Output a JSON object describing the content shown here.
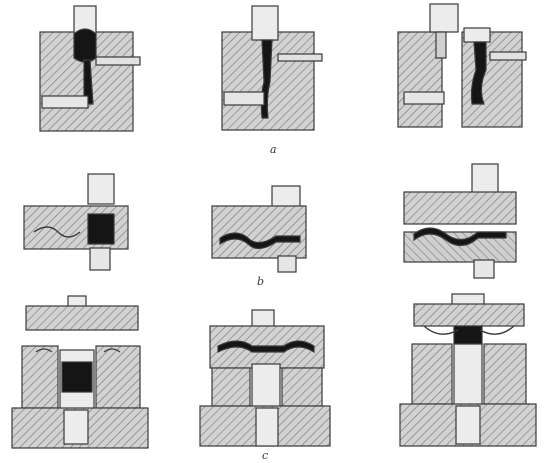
{
  "figure": {
    "row_labels": {
      "a": "a",
      "b": "b",
      "c": "c"
    }
  },
  "colors": {
    "background": "#ffffff",
    "hatch_fill": "#d2d2d2",
    "hatch_line": "#7a7a7a",
    "outline": "#3a3a3a",
    "metal_blank": "#151515",
    "light_part": "#ececec"
  }
}
